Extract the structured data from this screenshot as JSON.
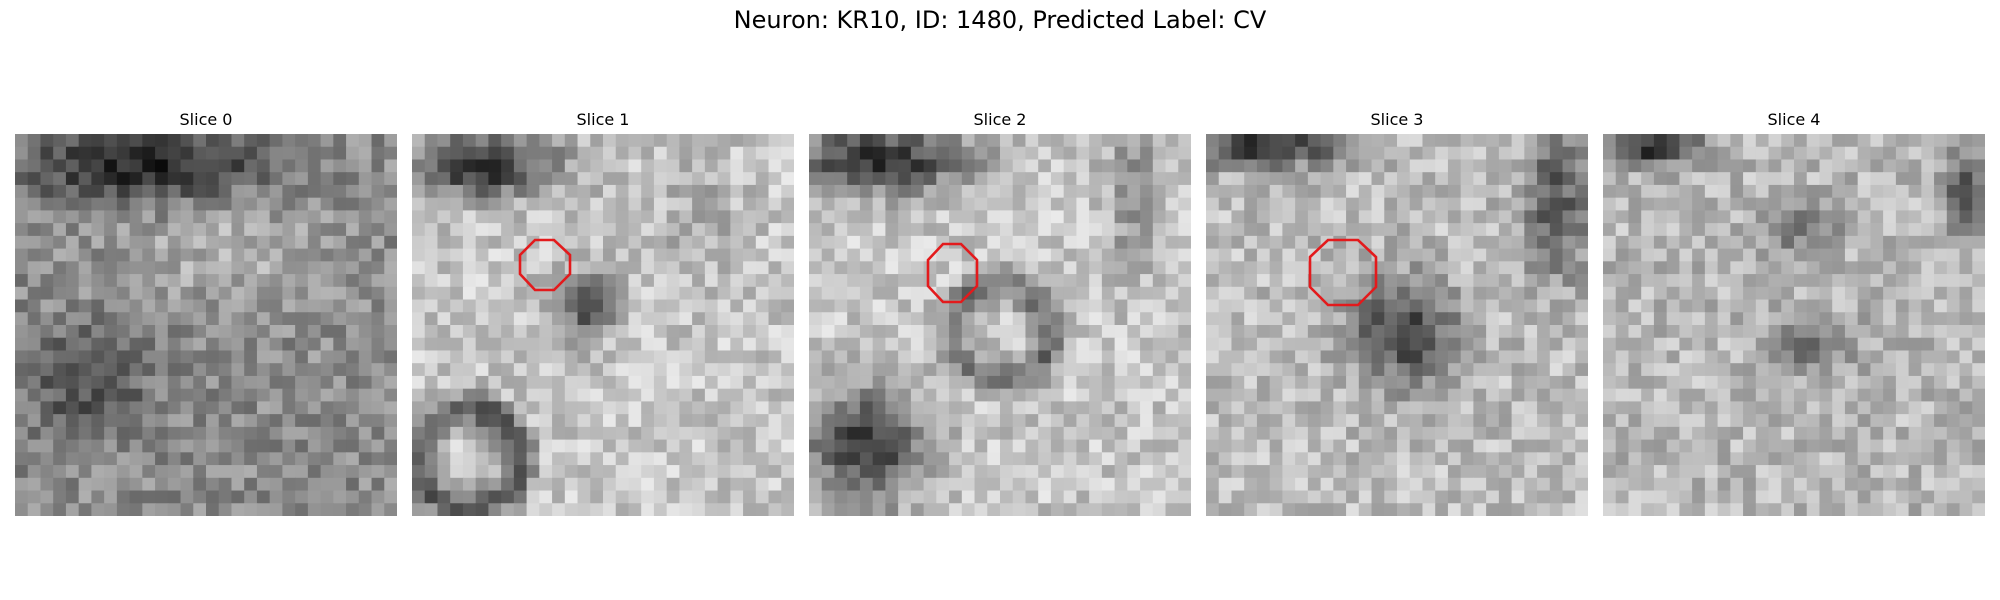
{
  "figure": {
    "title": "Neuron: KR10, ID: 1480, Predicted Label: CV",
    "contour_color": "#e31a1c",
    "panels": [
      {
        "title": "Slice 0",
        "has_contour": false
      },
      {
        "title": "Slice 1",
        "has_contour": true
      },
      {
        "title": "Slice 2",
        "has_contour": true
      },
      {
        "title": "Slice 3",
        "has_contour": true
      },
      {
        "title": "Slice 4",
        "has_contour": false
      }
    ]
  }
}
